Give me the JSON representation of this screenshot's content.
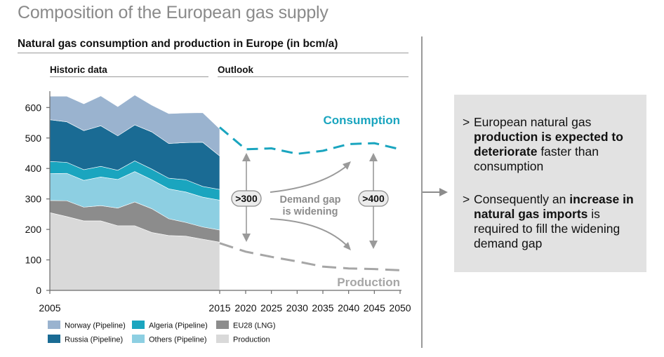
{
  "page": {
    "title": "Composition of the European gas supply"
  },
  "sections": {
    "historic": "Historic data",
    "outlook": "Outlook"
  },
  "chart_data": {
    "type": "area",
    "title": "Natural gas consumption and production in Europe (in bcm/a)",
    "ylim": [
      0,
      650
    ],
    "y_ticks": [
      "0",
      "100",
      "200",
      "300",
      "400",
      "500",
      "600"
    ],
    "historic": {
      "years": [
        2005,
        2006,
        2007,
        2008,
        2009,
        2010,
        2011,
        2012,
        2013,
        2014,
        2015
      ],
      "x_ticks": [
        "2005",
        "2015"
      ],
      "stack_order": [
        "Production",
        "EU28 (LNG)",
        "Others (Pipeline)",
        "Algeria (Pipeline)",
        "Russia (Pipeline)",
        "Norway (Pipeline)"
      ],
      "series": [
        {
          "name": "Production",
          "color": "#d9d9d9",
          "values": [
            255,
            242,
            228,
            228,
            212,
            212,
            190,
            180,
            178,
            168,
            158
          ]
        },
        {
          "name": "EU28 (LNG)",
          "color": "#8c8c8c",
          "values": [
            40,
            52,
            45,
            50,
            58,
            78,
            78,
            55,
            45,
            40,
            40
          ]
        },
        {
          "name": "Others (Pipeline)",
          "color": "#8dcfe2",
          "values": [
            88,
            90,
            88,
            94,
            94,
            100,
            95,
            98,
            100,
            98,
            98
          ]
        },
        {
          "name": "Algeria (Pipeline)",
          "color": "#1aa5bf",
          "values": [
            40,
            36,
            35,
            35,
            30,
            35,
            35,
            35,
            40,
            35,
            35
          ]
        },
        {
          "name": "Russia (Pipeline)",
          "color": "#1a6b94",
          "values": [
            137,
            133,
            128,
            133,
            113,
            118,
            122,
            114,
            122,
            145,
            110
          ]
        },
        {
          "name": "Norway (Pipeline)",
          "color": "#9ab3cf",
          "values": [
            77,
            84,
            88,
            98,
            96,
            98,
            88,
            98,
            97,
            97,
            89
          ]
        }
      ]
    },
    "outlook": {
      "years": [
        2015,
        2020,
        2025,
        2030,
        2035,
        2040,
        2045,
        2050
      ],
      "x_ticks": [
        "2020",
        "2025",
        "2030",
        "2035",
        "2040",
        "2045",
        "2050"
      ],
      "consumption": {
        "name": "Consumption",
        "color": "#1aa5bf",
        "values": [
          535,
          463,
          466,
          448,
          458,
          480,
          483,
          463
        ]
      },
      "production": {
        "name": "Production",
        "color": "#a6a6a6",
        "values": [
          155,
          127,
          110,
          95,
          78,
          72,
          70,
          66
        ]
      }
    },
    "annotations": {
      "gap_2020": ">300",
      "gap_2045": ">400",
      "gap_text_1": "Demand gap",
      "gap_text_2": "is widening"
    },
    "legend": [
      {
        "name": "Norway (Pipeline)",
        "color": "#9ab3cf"
      },
      {
        "name": "Algeria (Pipeline)",
        "color": "#1aa5bf"
      },
      {
        "name": "EU28 (LNG)",
        "color": "#8c8c8c"
      },
      {
        "name": "Russia (Pipeline)",
        "color": "#1a6b94"
      },
      {
        "name": "Others (Pipeline)",
        "color": "#8dcfe2"
      },
      {
        "name": "Production",
        "color": "#d9d9d9"
      }
    ]
  },
  "info_box": {
    "bullet_marker": ">",
    "bullets": [
      {
        "t1": "European natural gas ",
        "b1": "production is expected to deteriorate",
        "t2": " faster than consumption"
      },
      {
        "t1": "Consequently an ",
        "b1": "increase in natural gas imports",
        "t2": " is required to fill the widening demand gap"
      }
    ]
  }
}
